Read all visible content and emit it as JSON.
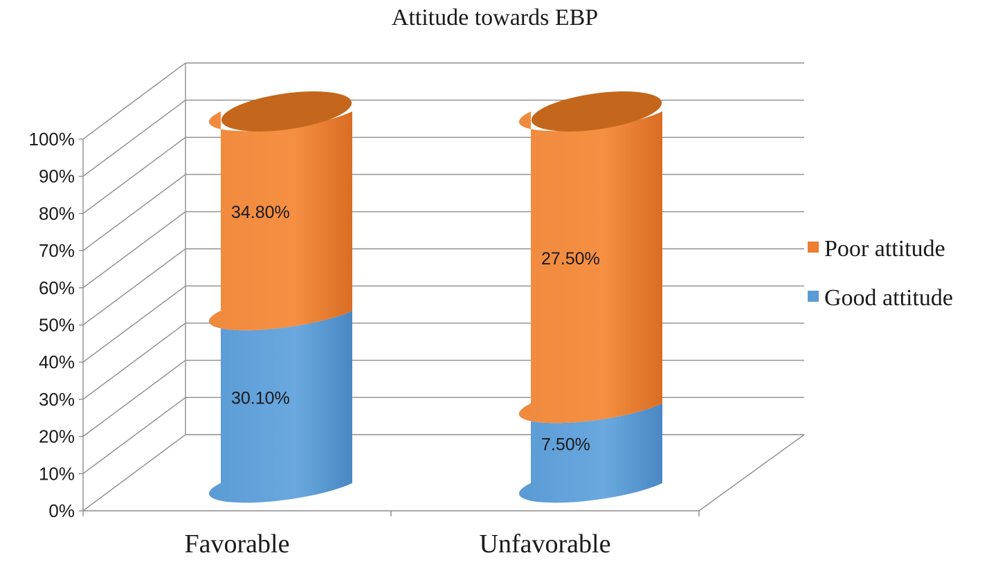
{
  "chart_data": {
    "type": "bar",
    "subtype": "stacked-cylinder-3d",
    "title": "Attitude towards EBP",
    "categories": [
      "Favorable",
      "Unfavorable"
    ],
    "series": [
      {
        "name": "Good attitude",
        "values": [
          30.1,
          7.5
        ],
        "labels": [
          "30.10%",
          "7.50%"
        ],
        "color": "#5b9bd5"
      },
      {
        "name": "Poor attitude",
        "values": [
          34.8,
          27.5
        ],
        "labels": [
          "34.80%",
          "27.50%"
        ],
        "color": "#ed7d31"
      }
    ],
    "y_ticks": [
      "0%",
      "10%",
      "20%",
      "30%",
      "40%",
      "50%",
      "60%",
      "70%",
      "80%",
      "90%",
      "100%"
    ],
    "ylim": [
      0,
      100
    ],
    "grid": true,
    "legend_position": "right",
    "legend_order": [
      "Poor attitude",
      "Good attitude"
    ]
  }
}
